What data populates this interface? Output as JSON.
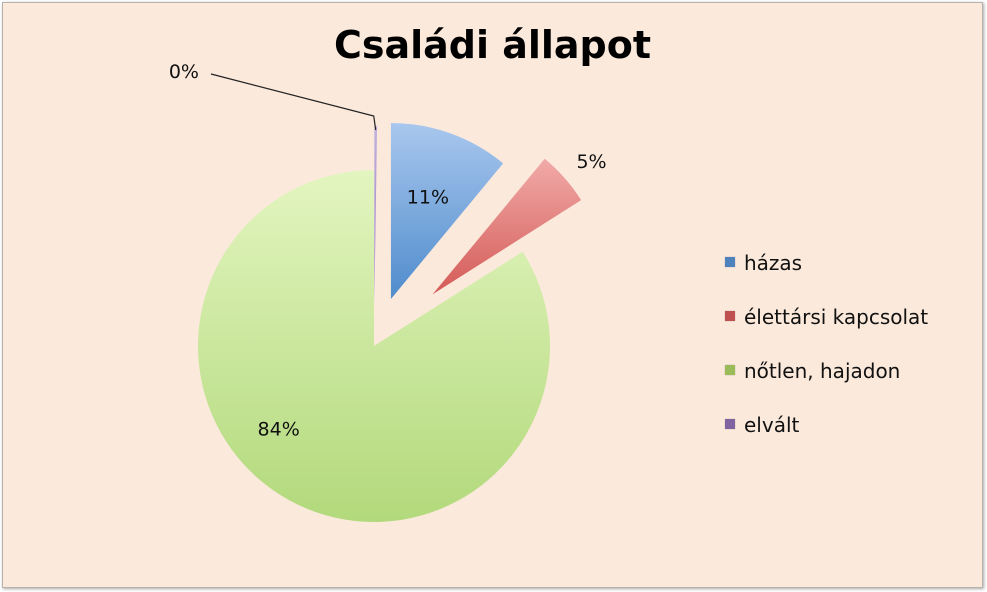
{
  "chart_data": {
    "type": "pie",
    "title": "Családi állapot",
    "categories": [
      "házas",
      "élettársi kapcsolat",
      "nőtlen, hajadon",
      "elvált"
    ],
    "values": [
      11,
      5,
      84,
      0
    ],
    "data_labels": [
      "11%",
      "5%",
      "84%",
      "0%"
    ],
    "colors": [
      "#4f81bd",
      "#c0504d",
      "#9bbb59",
      "#8064a2"
    ],
    "legend_position": "right",
    "exploded": true
  }
}
